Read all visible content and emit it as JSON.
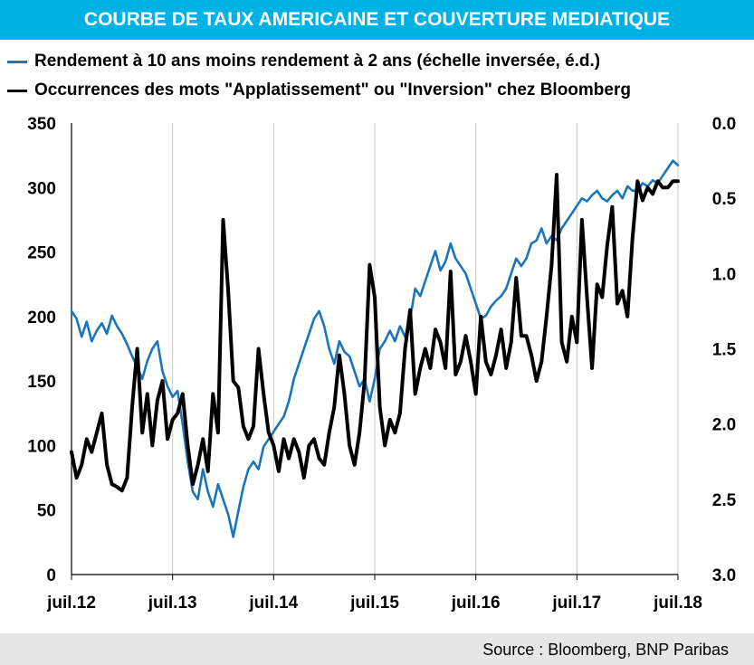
{
  "chart_data": {
    "type": "line",
    "title": "COURBE DE TAUX AMERICAINE ET COUVERTURE MEDIATIQUE",
    "x_tick_labels": [
      "juil.12",
      "juil.13",
      "juil.14",
      "juil.15",
      "juil.16",
      "juil.17",
      "juil.18"
    ],
    "x_range": [
      "2012-07",
      "2018-07"
    ],
    "left_axis": {
      "ylim": [
        0,
        350
      ],
      "ticks": [
        "0",
        "50",
        "100",
        "150",
        "200",
        "250",
        "300",
        "350"
      ]
    },
    "right_axis": {
      "ylim": [
        0.0,
        3.0
      ],
      "inverted": true,
      "ticks": [
        "0.0",
        "0.5",
        "1.0",
        "1.5",
        "2.0",
        "2.5",
        "3.0"
      ]
    },
    "grid": "vertical",
    "legend_position": "top-left",
    "series": [
      {
        "name": "Rendement à 10 ans moins rendement à 2 ans (échelle inversée, é.d.)",
        "axis": "right",
        "color": "#1a75bc",
        "x": [
          2012.5,
          2012.55,
          2012.6,
          2012.65,
          2012.7,
          2012.75,
          2012.8,
          2012.85,
          2012.9,
          2012.95,
          2013.0,
          2013.05,
          2013.1,
          2013.15,
          2013.2,
          2013.25,
          2013.3,
          2013.35,
          2013.4,
          2013.45,
          2013.5,
          2013.55,
          2013.6,
          2013.65,
          2013.7,
          2013.75,
          2013.8,
          2013.85,
          2013.9,
          2013.95,
          2014.0,
          2014.05,
          2014.1,
          2014.15,
          2014.2,
          2014.25,
          2014.3,
          2014.35,
          2014.4,
          2014.45,
          2014.5,
          2014.55,
          2014.6,
          2014.65,
          2014.7,
          2014.75,
          2014.8,
          2014.85,
          2014.9,
          2014.95,
          2015.0,
          2015.05,
          2015.1,
          2015.15,
          2015.2,
          2015.25,
          2015.3,
          2015.35,
          2015.4,
          2015.45,
          2015.5,
          2015.55,
          2015.6,
          2015.65,
          2015.7,
          2015.75,
          2015.8,
          2015.85,
          2015.9,
          2015.95,
          2016.0,
          2016.05,
          2016.1,
          2016.15,
          2016.2,
          2016.25,
          2016.3,
          2016.35,
          2016.4,
          2016.45,
          2016.5,
          2016.55,
          2016.6,
          2016.65,
          2016.7,
          2016.75,
          2016.8,
          2016.85,
          2016.9,
          2016.95,
          2017.0,
          2017.05,
          2017.1,
          2017.15,
          2017.2,
          2017.25,
          2017.3,
          2017.35,
          2017.4,
          2017.45,
          2017.5,
          2017.55,
          2017.6,
          2017.65,
          2017.7,
          2017.75,
          2017.8,
          2017.85,
          2017.9,
          2017.95,
          2018.0,
          2018.05,
          2018.1,
          2018.15,
          2018.2,
          2018.25,
          2018.3,
          2018.35,
          2018.4,
          2018.45,
          2018.5
        ],
        "y": [
          1.25,
          1.3,
          1.42,
          1.32,
          1.45,
          1.38,
          1.33,
          1.4,
          1.28,
          1.35,
          1.4,
          1.47,
          1.55,
          1.62,
          1.7,
          1.58,
          1.5,
          1.45,
          1.65,
          1.75,
          1.82,
          1.78,
          2.0,
          2.25,
          2.45,
          2.5,
          2.3,
          2.45,
          2.55,
          2.4,
          2.5,
          2.6,
          2.75,
          2.58,
          2.42,
          2.3,
          2.25,
          2.3,
          2.15,
          2.1,
          2.05,
          2.0,
          1.95,
          1.85,
          1.7,
          1.6,
          1.5,
          1.4,
          1.3,
          1.25,
          1.35,
          1.5,
          1.6,
          1.45,
          1.52,
          1.55,
          1.65,
          1.75,
          1.7,
          1.85,
          1.7,
          1.5,
          1.45,
          1.38,
          1.45,
          1.35,
          1.42,
          1.3,
          1.1,
          1.15,
          1.05,
          0.95,
          0.85,
          0.98,
          0.92,
          0.8,
          0.9,
          0.95,
          1.0,
          1.1,
          1.2,
          1.3,
          1.28,
          1.22,
          1.18,
          1.15,
          1.1,
          1.0,
          0.9,
          0.95,
          0.9,
          0.8,
          0.78,
          0.7,
          0.8,
          0.75,
          0.78,
          0.7,
          0.65,
          0.6,
          0.55,
          0.5,
          0.52,
          0.48,
          0.45,
          0.5,
          0.52,
          0.48,
          0.45,
          0.5,
          0.42,
          0.45,
          0.45,
          0.4,
          0.42,
          0.38,
          0.4,
          0.35,
          0.3,
          0.25,
          0.28
        ]
      },
      {
        "name": "Occurrences des mots \"Applatissement\" ou \"Inversion\"  chez Bloomberg",
        "axis": "left",
        "color": "#000000",
        "x": [
          2012.5,
          2012.55,
          2012.6,
          2012.65,
          2012.7,
          2012.75,
          2012.8,
          2012.85,
          2012.9,
          2012.95,
          2013.0,
          2013.05,
          2013.1,
          2013.15,
          2013.2,
          2013.25,
          2013.3,
          2013.35,
          2013.4,
          2013.45,
          2013.5,
          2013.55,
          2013.6,
          2013.65,
          2013.7,
          2013.75,
          2013.8,
          2013.85,
          2013.9,
          2013.95,
          2014.0,
          2014.05,
          2014.1,
          2014.15,
          2014.2,
          2014.25,
          2014.3,
          2014.35,
          2014.4,
          2014.45,
          2014.5,
          2014.55,
          2014.6,
          2014.65,
          2014.7,
          2014.75,
          2014.8,
          2014.85,
          2014.9,
          2014.95,
          2015.0,
          2015.05,
          2015.1,
          2015.15,
          2015.2,
          2015.25,
          2015.3,
          2015.35,
          2015.4,
          2015.45,
          2015.5,
          2015.55,
          2015.6,
          2015.65,
          2015.7,
          2015.75,
          2015.8,
          2015.85,
          2015.9,
          2015.95,
          2016.0,
          2016.05,
          2016.1,
          2016.15,
          2016.2,
          2016.25,
          2016.3,
          2016.35,
          2016.4,
          2016.45,
          2016.5,
          2016.55,
          2016.6,
          2016.65,
          2016.7,
          2016.75,
          2016.8,
          2016.85,
          2016.9,
          2016.95,
          2017.0,
          2017.05,
          2017.1,
          2017.15,
          2017.2,
          2017.25,
          2017.3,
          2017.35,
          2017.4,
          2017.45,
          2017.5,
          2017.55,
          2017.6,
          2017.65,
          2017.7,
          2017.75,
          2017.8,
          2017.85,
          2017.9,
          2017.95,
          2018.0,
          2018.05,
          2018.1,
          2018.15,
          2018.2,
          2018.25,
          2018.3,
          2018.35,
          2018.4,
          2018.45,
          2018.5
        ],
        "y": [
          95,
          75,
          85,
          105,
          95,
          110,
          125,
          85,
          70,
          68,
          65,
          75,
          130,
          175,
          110,
          140,
          100,
          135,
          150,
          105,
          120,
          125,
          140,
          100,
          70,
          85,
          105,
          80,
          140,
          110,
          275,
          220,
          150,
          145,
          115,
          105,
          115,
          175,
          140,
          110,
          100,
          80,
          105,
          90,
          105,
          95,
          75,
          100,
          105,
          90,
          85,
          110,
          130,
          170,
          140,
          100,
          85,
          110,
          150,
          240,
          215,
          130,
          100,
          120,
          110,
          125,
          175,
          205,
          140,
          160,
          175,
          160,
          190,
          180,
          160,
          235,
          155,
          165,
          185,
          165,
          140,
          200,
          165,
          155,
          170,
          190,
          160,
          180,
          230,
          185,
          185,
          170,
          150,
          165,
          200,
          240,
          310,
          180,
          165,
          200,
          180,
          275,
          215,
          160,
          225,
          215,
          255,
          285,
          210,
          220,
          200,
          260,
          305,
          290,
          300,
          295,
          305,
          300,
          300,
          305,
          305
        ]
      }
    ]
  },
  "source": "Source : Bloomberg, BNP Paribas"
}
